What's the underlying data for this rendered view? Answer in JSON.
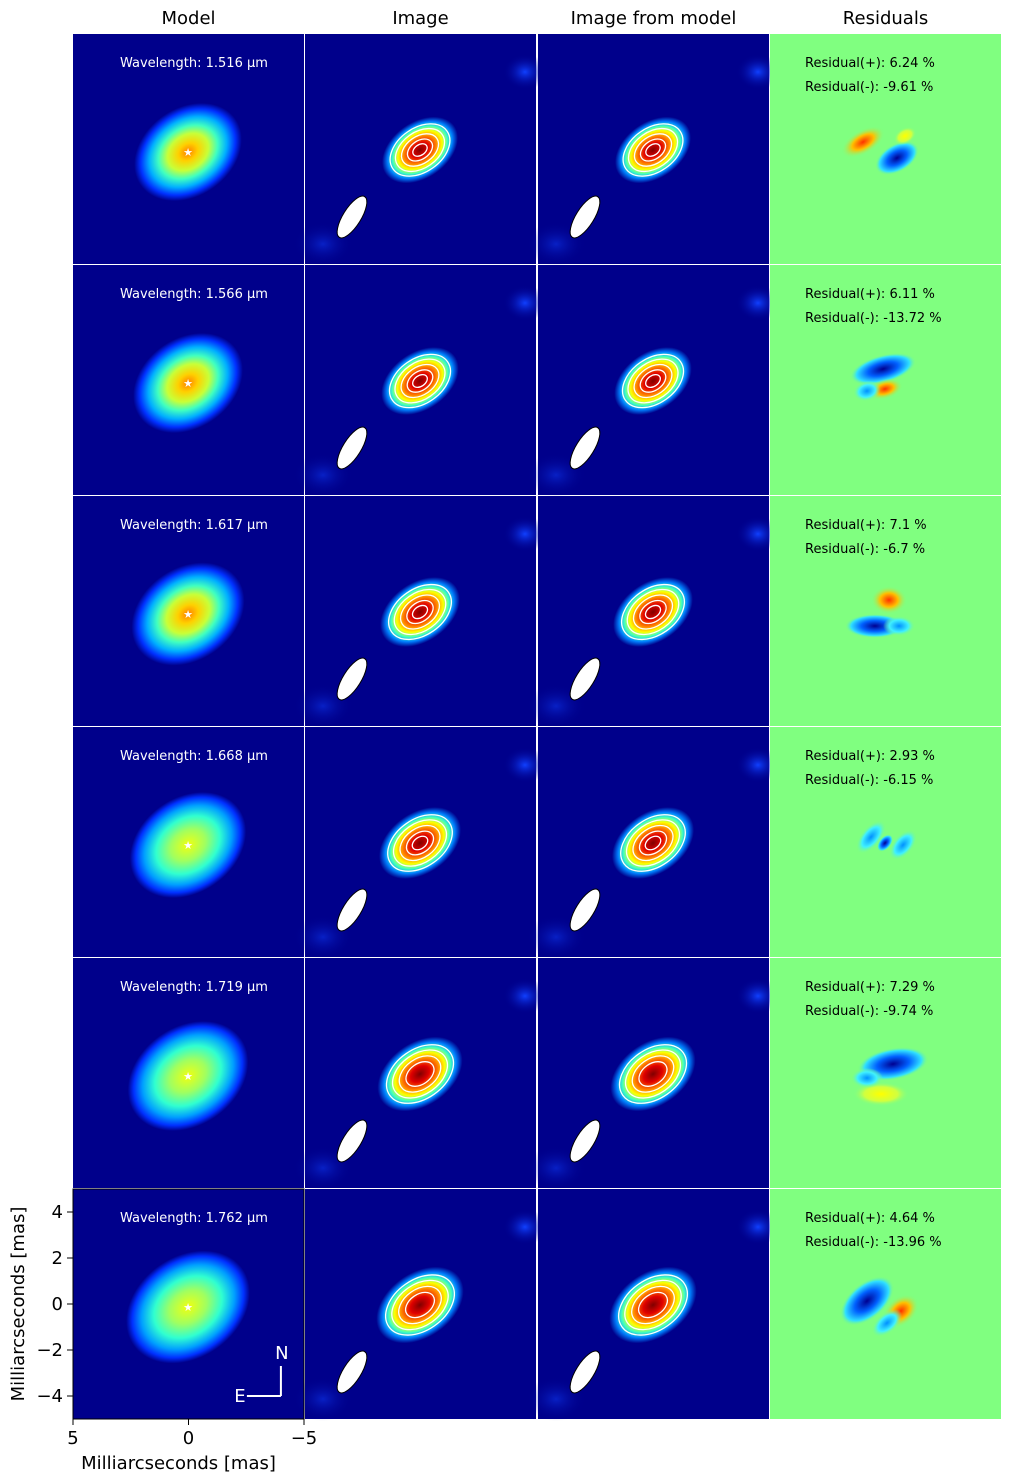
{
  "chart_data": {
    "type": "image-grid",
    "columns": [
      "Model",
      "Image",
      "Image from model",
      "Residuals"
    ],
    "rows": [
      {
        "wavelength_label": "Wavelength: 1.516 μm",
        "residual_pos": "Residual(+): 6.24 %",
        "residual_neg": "Residual(-): -9.61 %"
      },
      {
        "wavelength_label": "Wavelength: 1.566 μm",
        "residual_pos": "Residual(+): 6.11 %",
        "residual_neg": "Residual(-): -13.72 %"
      },
      {
        "wavelength_label": "Wavelength: 1.617 μm",
        "residual_pos": "Residual(+): 7.1 %",
        "residual_neg": "Residual(-): -6.7 %"
      },
      {
        "wavelength_label": "Wavelength: 1.668 μm",
        "residual_pos": "Residual(+): 2.93 %",
        "residual_neg": "Residual(-): -6.15 %"
      },
      {
        "wavelength_label": "Wavelength: 1.719 μm",
        "residual_pos": "Residual(+): 7.29 %",
        "residual_neg": "Residual(-): -9.74 %"
      },
      {
        "wavelength_label": "Wavelength: 1.762 μm",
        "residual_pos": "Residual(+): 4.64 %",
        "residual_neg": "Residual(-): -13.96 %"
      }
    ],
    "xlabel": "Milliarcseconds [mas]",
    "ylabel": "Milliarcseconds [mas]",
    "xticks": [
      "5",
      "0",
      "−5"
    ],
    "yticks": [
      "4",
      "2",
      "0",
      "−2",
      "−4"
    ],
    "xlim": [
      5,
      -5
    ],
    "ylim": [
      -5,
      5
    ],
    "compass": {
      "north": "N",
      "east": "E"
    },
    "colormap": "jet",
    "colors": {
      "background_dark": "#00008b",
      "residual_background": "#80ff80",
      "contour": "#ffffff"
    }
  }
}
